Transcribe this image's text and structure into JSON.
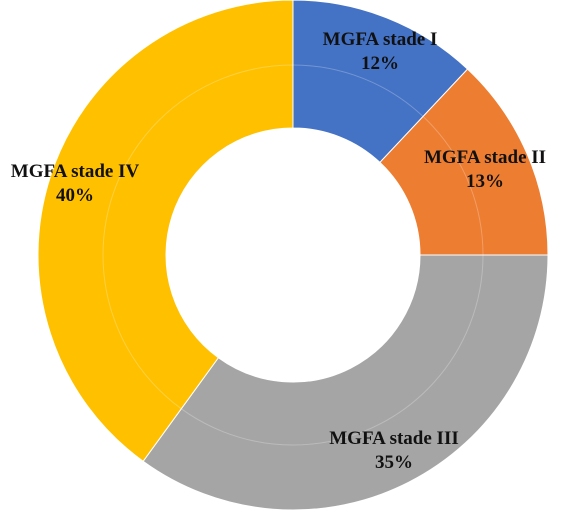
{
  "chart_data": {
    "type": "pie",
    "variant": "donut",
    "title": "",
    "start_angle_deg": 0,
    "direction": "clockwise",
    "slices": [
      {
        "label": "MGFA stade I",
        "value": 12,
        "value_label": "12%",
        "color": "#4472C4"
      },
      {
        "label": "MGFA stade II",
        "value": 13,
        "value_label": "13%",
        "color": "#ED7D31"
      },
      {
        "label": "MGFA stade III",
        "value": 35,
        "value_label": "35%",
        "color": "#A5A5A5"
      },
      {
        "label": "MGFA stade IV",
        "value": 40,
        "value_label": "40%",
        "color": "#FFC000"
      }
    ],
    "legend": "none"
  }
}
